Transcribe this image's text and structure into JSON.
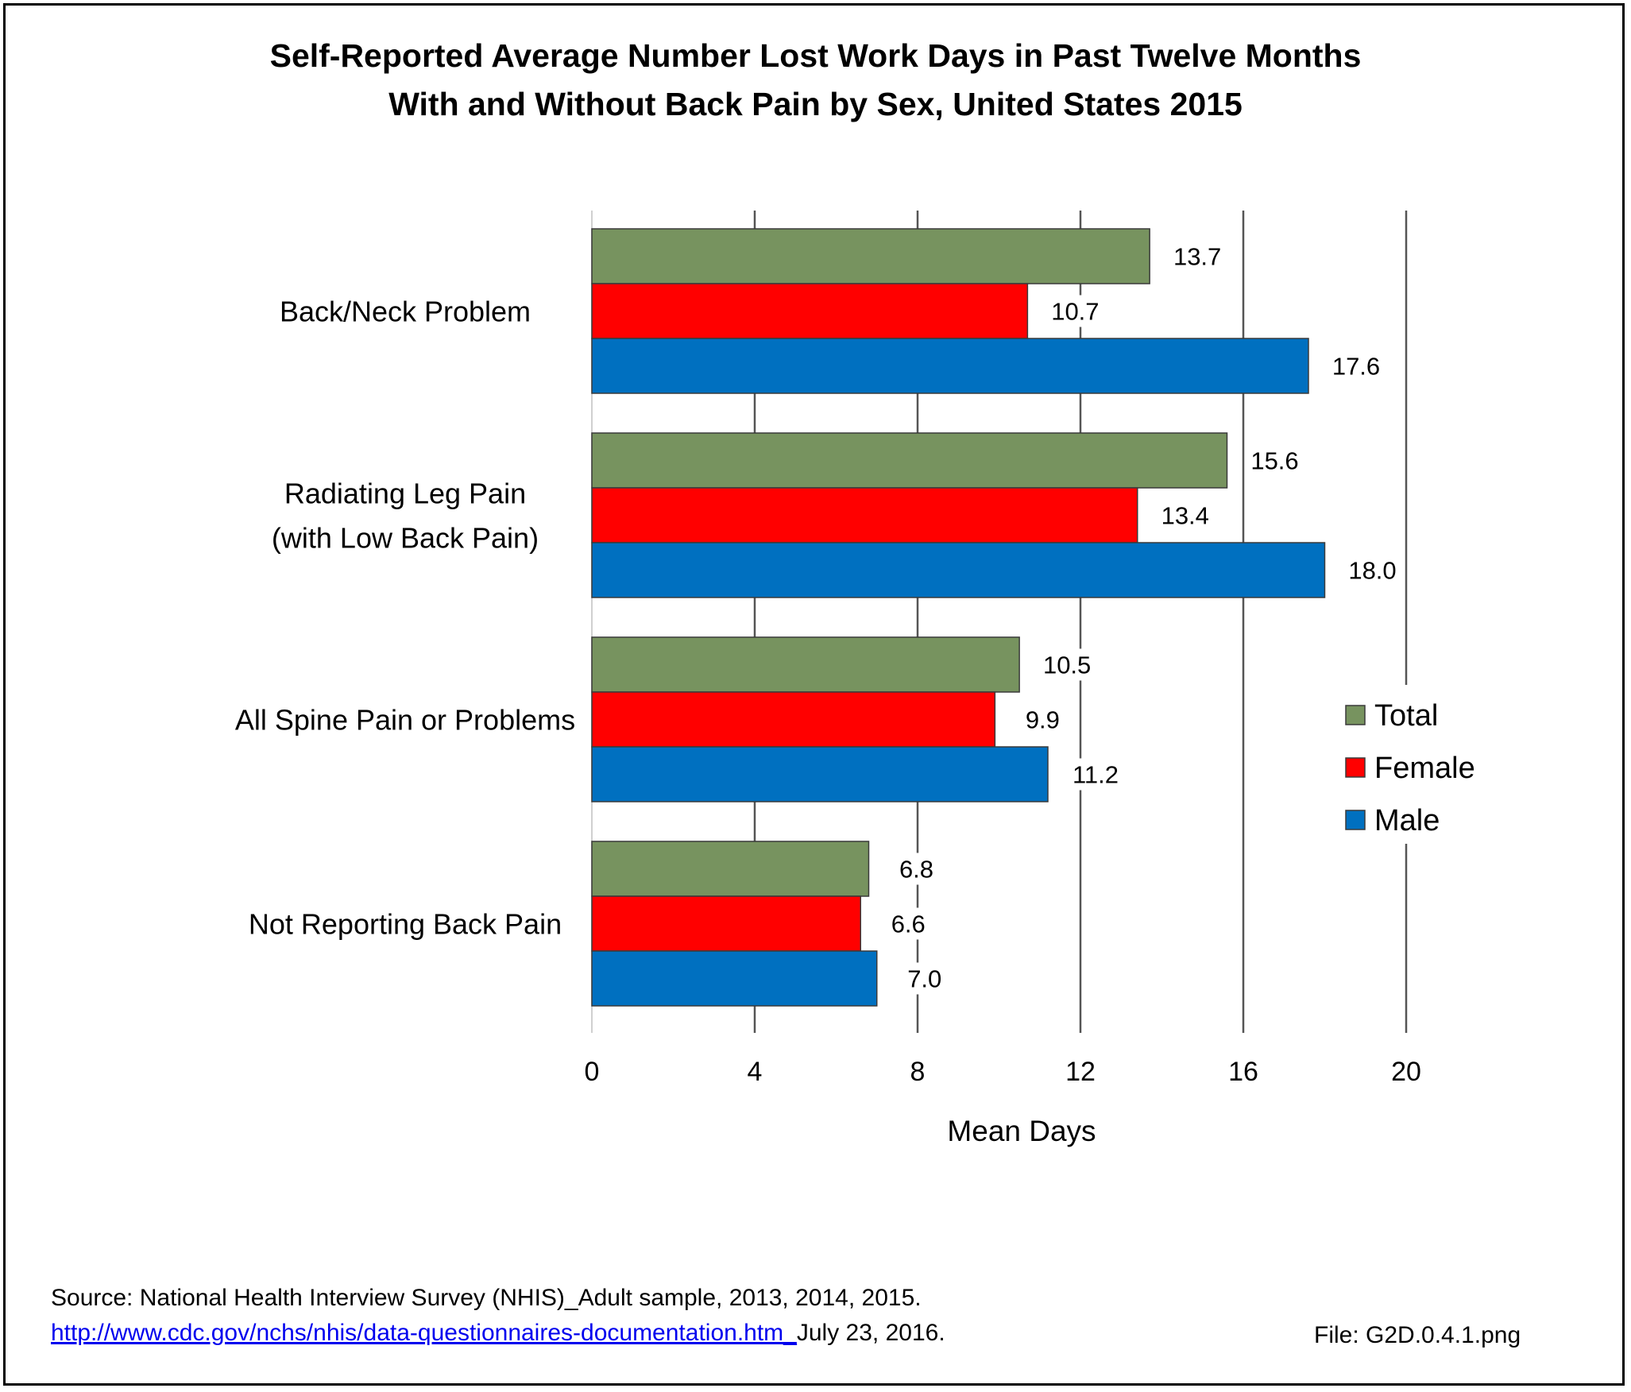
{
  "chart_data": {
    "type": "bar",
    "orientation": "horizontal",
    "title_line1": "Self-Reported Average Number Lost Work Days in Past Twelve Months",
    "title_line2": "With and Without Back Pain by Sex, United States 2015",
    "categories": [
      [
        "Back/Neck Problem"
      ],
      [
        "Radiating Leg Pain",
        "(with Low Back Pain)"
      ],
      [
        "All Spine Pain or Problems"
      ],
      [
        "Not Reporting Back Pain"
      ]
    ],
    "series": [
      {
        "name": "Total",
        "color": "#77935f",
        "values": [
          13.7,
          15.6,
          10.5,
          6.8
        ]
      },
      {
        "name": "Female",
        "color": "#ff0000",
        "values": [
          10.7,
          13.4,
          9.9,
          6.6
        ]
      },
      {
        "name": "Male",
        "color": "#0070c0",
        "values": [
          17.6,
          18.0,
          11.2,
          7.0
        ]
      }
    ],
    "xlabel": "Mean Days",
    "ylabel": "",
    "xlim": [
      0,
      20
    ],
    "xticks": [
      0,
      4,
      8,
      12,
      16,
      20
    ],
    "grid": true,
    "legend": "right"
  },
  "footer": {
    "source_line1": "Source: National Health Interview Survey (NHIS)_Adult sample, 2013, 2014, 2015.",
    "source_link": "http://www.cdc.gov/nchs/nhis/data-questionnaires-documentation.htm_",
    "source_date": "July 23, 2016.",
    "file_label": "File: G2D.0.4.1.png"
  }
}
